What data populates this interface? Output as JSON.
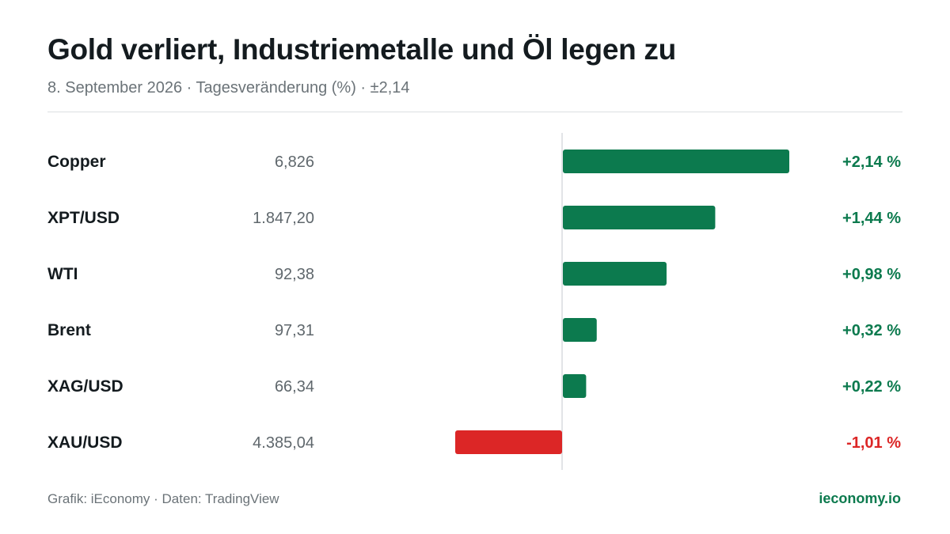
{
  "header": {
    "title": "Gold verliert, Industriemetalle und Öl legen zu",
    "subtitle": "8. September 2026 · Tagesveränderung (%) · ±2,14"
  },
  "footer": {
    "source": "Grafik: iEconomy · Daten: TradingView",
    "brand": "ieconomy.io"
  },
  "colors": {
    "positive": "#0c7a4e",
    "negative": "#dc2626",
    "label": "#141b1f",
    "price": "#5f676c",
    "axis": "#d8dcdf"
  },
  "chart_data": {
    "type": "bar",
    "orientation": "horizontal",
    "categories": [
      "Copper",
      "XPT/USD",
      "WTI",
      "Brent",
      "XAG/USD",
      "XAU/USD"
    ],
    "prices": [
      "6,826",
      "1.847,20",
      "92,38",
      "97,31",
      "66,34",
      "4.385,04"
    ],
    "values": [
      2.14,
      1.44,
      0.98,
      0.32,
      0.22,
      -1.01
    ],
    "value_labels": [
      "+2,14 %",
      "+1,44 %",
      "+0,98 %",
      "+0,32 %",
      "+0,22 %",
      "-1,01 %"
    ],
    "xlim": [
      -2.14,
      2.14
    ]
  }
}
